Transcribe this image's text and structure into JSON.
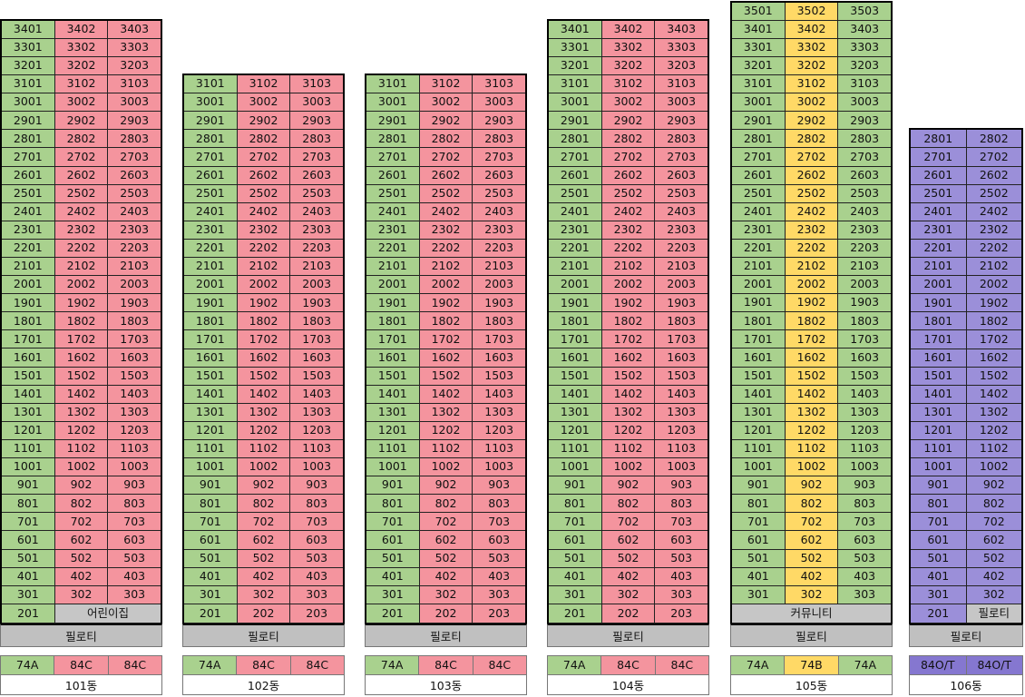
{
  "colors": {
    "green": "#a9d18e",
    "red": "#f4949e",
    "yellow": "#ffd966",
    "purple": "#9b8fd9",
    "grey": "#c6c6c6"
  },
  "buildings": [
    {
      "id": "b101",
      "name": "101동",
      "top_floor": 34,
      "cols": [
        "01",
        "02",
        "03"
      ],
      "col_colors": [
        "green",
        "red",
        "red"
      ],
      "ground": [
        {
          "text": "201",
          "color": "green",
          "span": 1
        },
        {
          "text": "어린이집",
          "color": "grey",
          "span": 2
        }
      ],
      "base": "필로티",
      "types": [
        {
          "text": "74A",
          "color": "green"
        },
        {
          "text": "84C",
          "color": "red"
        },
        {
          "text": "84C",
          "color": "red"
        }
      ]
    },
    {
      "id": "b102",
      "name": "102동",
      "top_floor": 31,
      "cols": [
        "01",
        "02",
        "03"
      ],
      "col_colors": [
        "green",
        "red",
        "red"
      ],
      "ground": [
        {
          "text": "201",
          "color": "green",
          "span": 1
        },
        {
          "text": "202",
          "color": "red",
          "span": 1
        },
        {
          "text": "203",
          "color": "red",
          "span": 1
        }
      ],
      "base": "필로티",
      "types": [
        {
          "text": "74A",
          "color": "green"
        },
        {
          "text": "84C",
          "color": "red"
        },
        {
          "text": "84C",
          "color": "red"
        }
      ]
    },
    {
      "id": "b103",
      "name": "103동",
      "top_floor": 31,
      "cols": [
        "01",
        "02",
        "03"
      ],
      "col_colors": [
        "green",
        "red",
        "red"
      ],
      "ground": [
        {
          "text": "201",
          "color": "green",
          "span": 1
        },
        {
          "text": "202",
          "color": "red",
          "span": 1
        },
        {
          "text": "203",
          "color": "red",
          "span": 1
        }
      ],
      "base": "필로티",
      "types": [
        {
          "text": "74A",
          "color": "green"
        },
        {
          "text": "84C",
          "color": "red"
        },
        {
          "text": "84C",
          "color": "red"
        }
      ]
    },
    {
      "id": "b104",
      "name": "104동",
      "top_floor": 34,
      "cols": [
        "01",
        "02",
        "03"
      ],
      "col_colors": [
        "green",
        "red",
        "red"
      ],
      "ground": [
        {
          "text": "201",
          "color": "green",
          "span": 1
        },
        {
          "text": "202",
          "color": "red",
          "span": 1
        },
        {
          "text": "203",
          "color": "red",
          "span": 1
        }
      ],
      "base": "필로티",
      "types": [
        {
          "text": "74A",
          "color": "green"
        },
        {
          "text": "84C",
          "color": "red"
        },
        {
          "text": "84C",
          "color": "red"
        }
      ]
    },
    {
      "id": "b105",
      "name": "105동",
      "top_floor": 35,
      "bottom_floor": 3,
      "cols": [
        "01",
        "02",
        "03"
      ],
      "col_colors": [
        "green",
        "yellow",
        "green"
      ],
      "ground": [
        {
          "text": "커뮤니티",
          "color": "grey",
          "span": 3
        }
      ],
      "base": "필로티",
      "types": [
        {
          "text": "74A",
          "color": "green"
        },
        {
          "text": "74B",
          "color": "yellow"
        },
        {
          "text": "74A",
          "color": "green"
        }
      ]
    },
    {
      "id": "b106",
      "name": "106동",
      "top_floor": 28,
      "bottom_floor": 3,
      "cols": [
        "01",
        "02"
      ],
      "col_colors": [
        "purple",
        "purple"
      ],
      "ground": [
        {
          "text": "201",
          "color": "purple",
          "span": 1
        },
        {
          "text": "필로티",
          "color": "grey",
          "span": 1
        }
      ],
      "base": "필로티",
      "types": [
        {
          "text": "84O/T",
          "color": "purpled"
        },
        {
          "text": "84O/T",
          "color": "purpled"
        }
      ]
    }
  ]
}
